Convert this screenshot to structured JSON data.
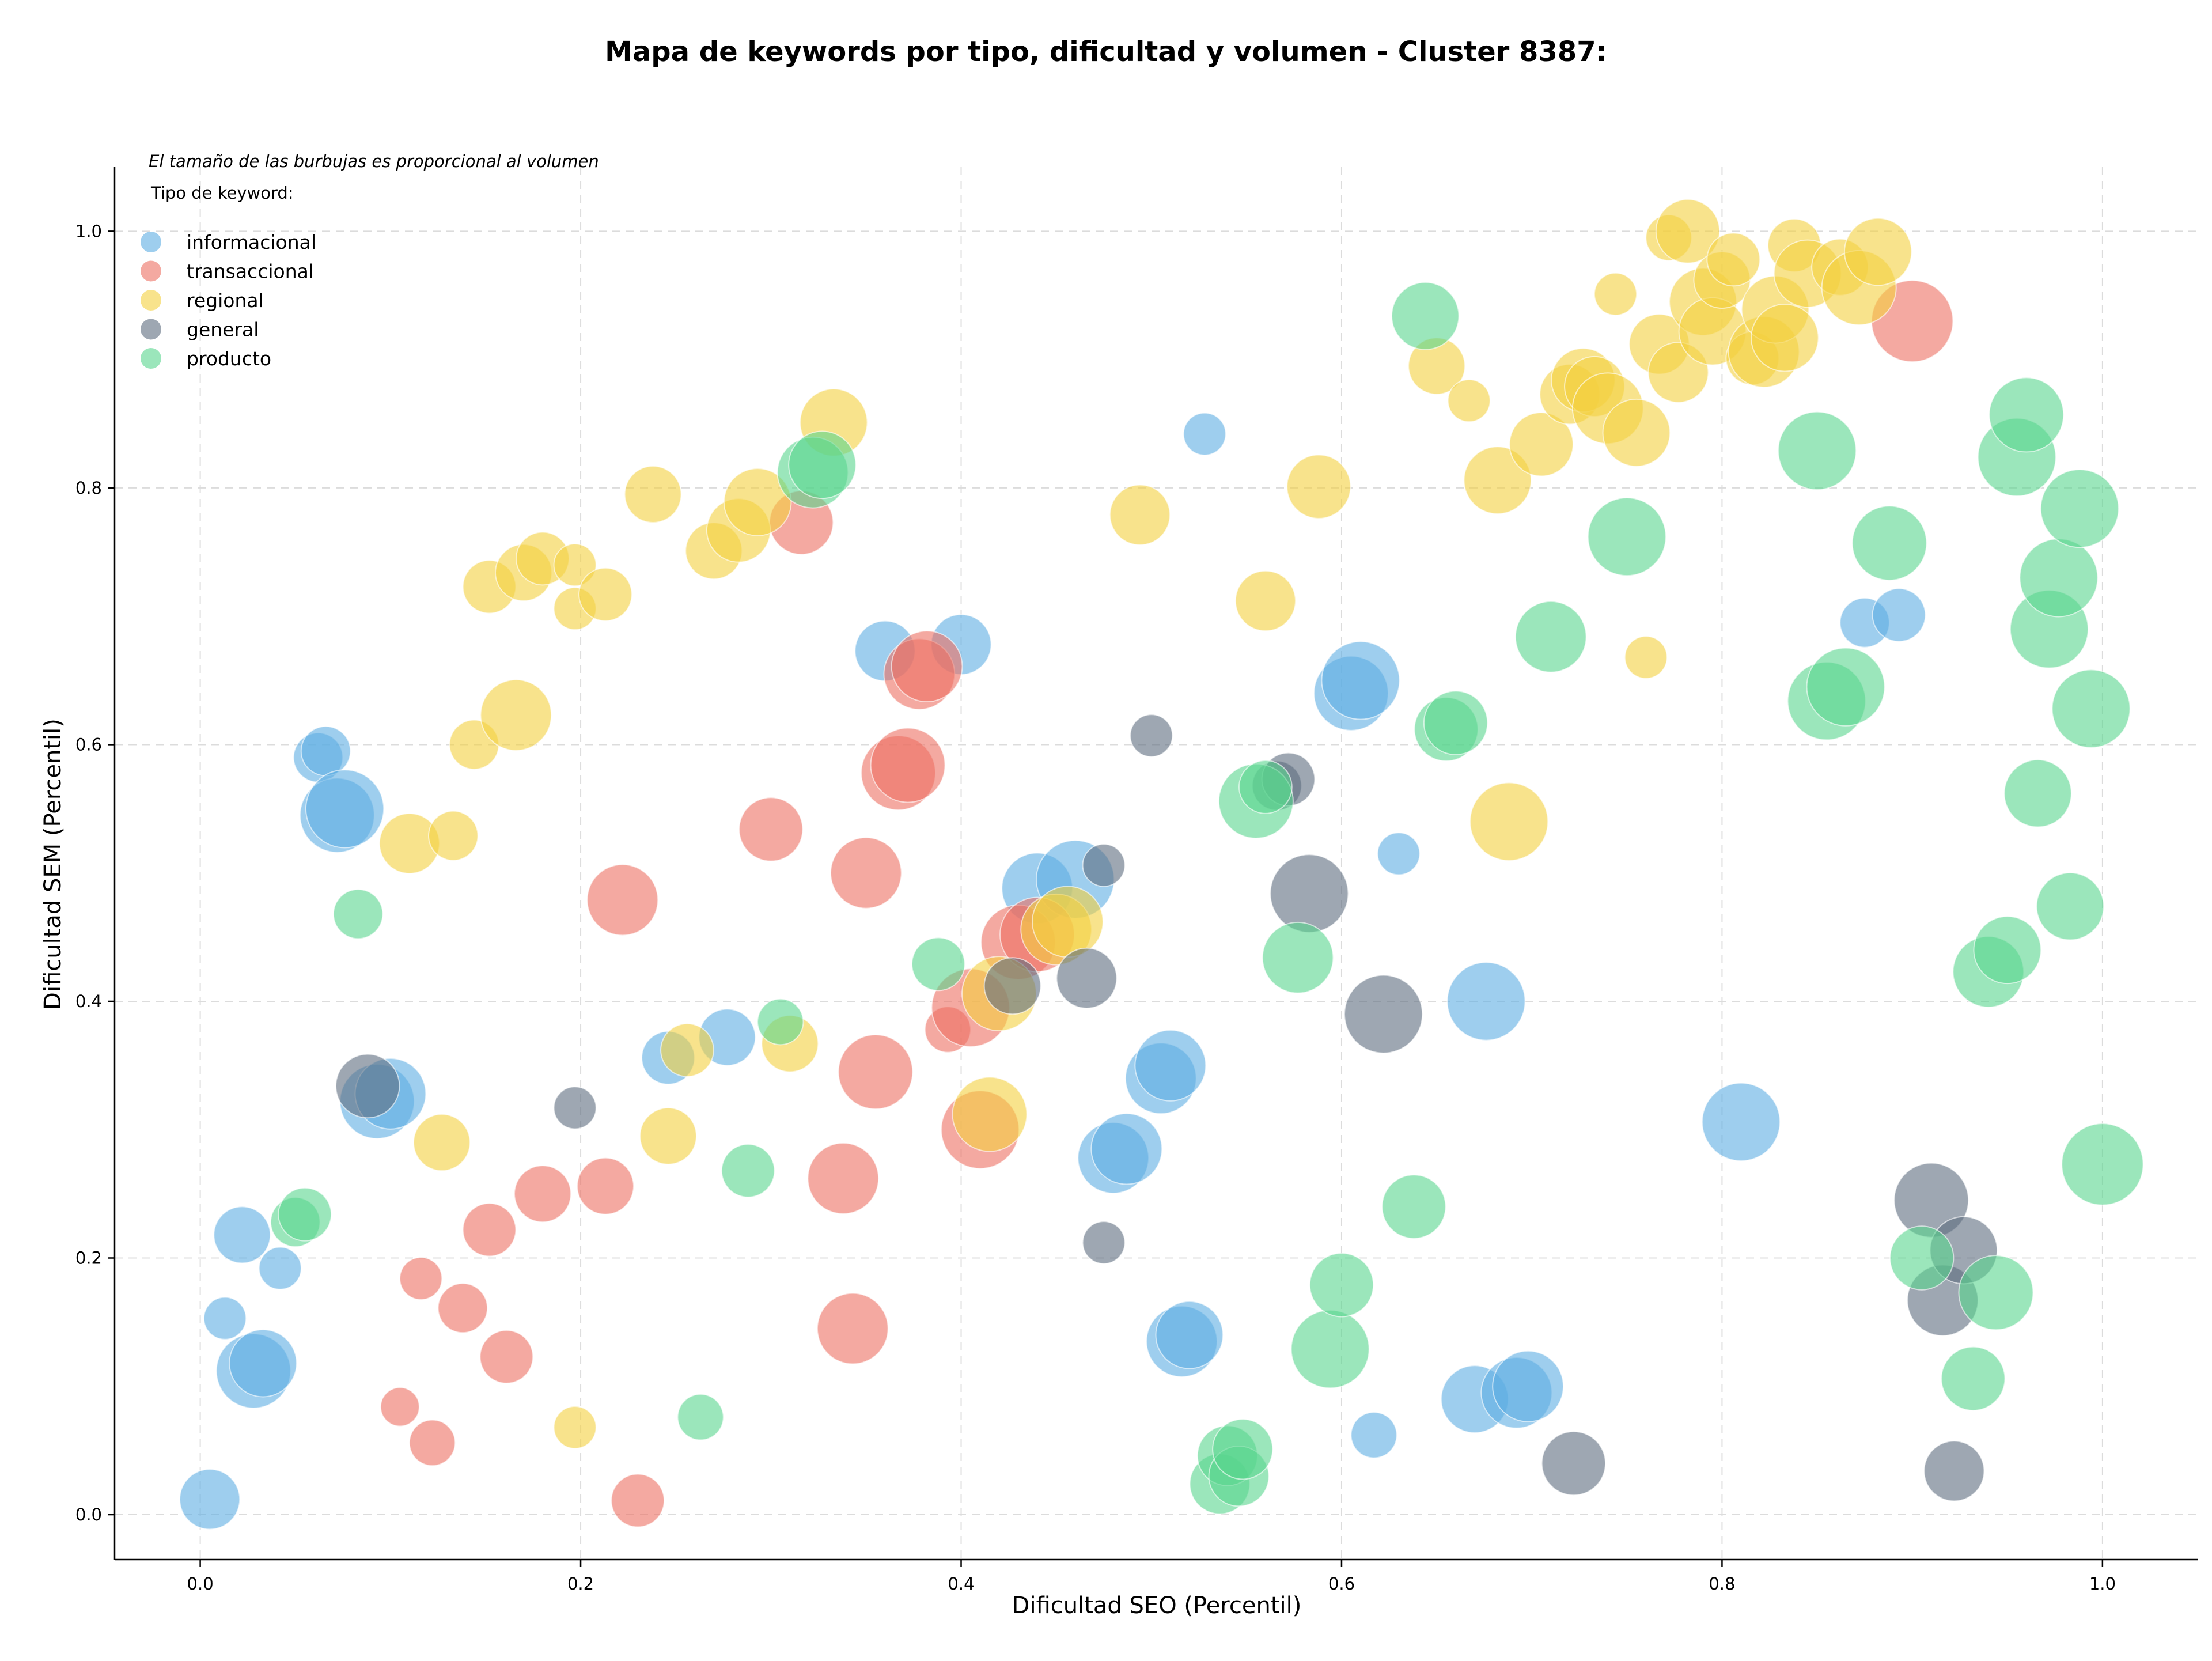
{
  "chart_data": {
    "type": "scatter",
    "title": "Mapa de keywords por tipo, dificultad y volumen - Cluster 8387:",
    "xlabel": "Dificultad SEO (Percentil)",
    "ylabel": "Dificultad SEM (Percentil)",
    "xlim": [
      -0.045,
      1.05
    ],
    "ylim": [
      -0.035,
      1.05
    ],
    "xticks": [
      "0.0",
      "0.2",
      "0.4",
      "0.6",
      "0.8",
      "1.0"
    ],
    "yticks": [
      "0.0",
      "0.2",
      "0.4",
      "0.6",
      "0.8",
      "1.0"
    ],
    "xtick_values": [
      0,
      0.2,
      0.4,
      0.6,
      0.8,
      1.0
    ],
    "ytick_values": [
      0,
      0.2,
      0.4,
      0.6,
      0.8,
      1.0
    ],
    "grid": true,
    "note": "El tamaño de las burbujas es proporcional al volumen",
    "legend_title": "Tipo de keyword:",
    "legend_position": "top-left",
    "series": [
      {
        "name": "informacional",
        "color": "#5DADE2",
        "points": [
          [
            0.005,
            0.012,
            0.55
          ],
          [
            0.022,
            0.218,
            0.5
          ],
          [
            0.028,
            0.112,
            0.75
          ],
          [
            0.033,
            0.118,
            0.65
          ],
          [
            0.013,
            0.153,
            0.3
          ],
          [
            0.042,
            0.192,
            0.3
          ],
          [
            0.062,
            0.59,
            0.4
          ],
          [
            0.066,
            0.595,
            0.4
          ],
          [
            0.072,
            0.545,
            0.75
          ],
          [
            0.076,
            0.55,
            0.8
          ],
          [
            0.093,
            0.322,
            0.75
          ],
          [
            0.1,
            0.328,
            0.7
          ],
          [
            0.246,
            0.356,
            0.45
          ],
          [
            0.277,
            0.372,
            0.5
          ],
          [
            0.36,
            0.673,
            0.55
          ],
          [
            0.4,
            0.678,
            0.55
          ],
          [
            0.44,
            0.488,
            0.7
          ],
          [
            0.46,
            0.495,
            0.8
          ],
          [
            0.48,
            0.278,
            0.7
          ],
          [
            0.487,
            0.285,
            0.7
          ],
          [
            0.505,
            0.34,
            0.7
          ],
          [
            0.51,
            0.35,
            0.7
          ],
          [
            0.516,
            0.135,
            0.7
          ],
          [
            0.52,
            0.14,
            0.65
          ],
          [
            0.528,
            0.842,
            0.3
          ],
          [
            0.605,
            0.64,
            0.75
          ],
          [
            0.61,
            0.65,
            0.8
          ],
          [
            0.63,
            0.515,
            0.3
          ],
          [
            0.617,
            0.062,
            0.35
          ],
          [
            0.67,
            0.09,
            0.65
          ],
          [
            0.676,
            0.4,
            0.8
          ],
          [
            0.692,
            0.095,
            0.7
          ],
          [
            0.698,
            0.1,
            0.7
          ],
          [
            0.81,
            0.306,
            0.8
          ],
          [
            0.875,
            0.695,
            0.4
          ],
          [
            0.893,
            0.701,
            0.45
          ]
        ]
      },
      {
        "name": "transaccional",
        "color": "#EC7063",
        "points": [
          [
            0.105,
            0.084,
            0.25
          ],
          [
            0.116,
            0.184,
            0.3
          ],
          [
            0.122,
            0.056,
            0.35
          ],
          [
            0.138,
            0.161,
            0.4
          ],
          [
            0.152,
            0.222,
            0.45
          ],
          [
            0.161,
            0.123,
            0.45
          ],
          [
            0.18,
            0.25,
            0.5
          ],
          [
            0.213,
            0.256,
            0.5
          ],
          [
            0.222,
            0.479,
            0.7
          ],
          [
            0.23,
            0.011,
            0.45
          ],
          [
            0.3,
            0.534,
            0.6
          ],
          [
            0.316,
            0.773,
            0.6
          ],
          [
            0.338,
            0.262,
            0.7
          ],
          [
            0.343,
            0.145,
            0.7
          ],
          [
            0.35,
            0.5,
            0.7
          ],
          [
            0.355,
            0.345,
            0.75
          ],
          [
            0.367,
            0.578,
            0.75
          ],
          [
            0.372,
            0.584,
            0.75
          ],
          [
            0.378,
            0.655,
            0.7
          ],
          [
            0.382,
            0.661,
            0.7
          ],
          [
            0.393,
            0.378,
            0.35
          ],
          [
            0.405,
            0.395,
            0.8
          ],
          [
            0.41,
            0.3,
            0.8
          ],
          [
            0.43,
            0.446,
            0.75
          ],
          [
            0.44,
            0.452,
            0.75
          ],
          [
            0.9,
            0.93,
            0.85
          ]
        ]
      },
      {
        "name": "regional",
        "color": "#F4D03F",
        "points": [
          [
            0.11,
            0.523,
            0.55
          ],
          [
            0.127,
            0.29,
            0.5
          ],
          [
            0.133,
            0.529,
            0.4
          ],
          [
            0.144,
            0.6,
            0.4
          ],
          [
            0.152,
            0.723,
            0.45
          ],
          [
            0.166,
            0.623,
            0.7
          ],
          [
            0.17,
            0.734,
            0.5
          ],
          [
            0.18,
            0.745,
            0.45
          ],
          [
            0.197,
            0.74,
            0.3
          ],
          [
            0.197,
            0.706,
            0.3
          ],
          [
            0.197,
            0.068,
            0.3
          ],
          [
            0.213,
            0.717,
            0.45
          ],
          [
            0.238,
            0.795,
            0.5
          ],
          [
            0.246,
            0.295,
            0.5
          ],
          [
            0.256,
            0.362,
            0.45
          ],
          [
            0.27,
            0.751,
            0.5
          ],
          [
            0.283,
            0.767,
            0.6
          ],
          [
            0.293,
            0.789,
            0.65
          ],
          [
            0.31,
            0.367,
            0.5
          ],
          [
            0.333,
            0.851,
            0.65
          ],
          [
            0.415,
            0.312,
            0.75
          ],
          [
            0.42,
            0.406,
            0.75
          ],
          [
            0.45,
            0.456,
            0.7
          ],
          [
            0.456,
            0.462,
            0.7
          ],
          [
            0.494,
            0.779,
            0.55
          ],
          [
            0.56,
            0.712,
            0.55
          ],
          [
            0.588,
            0.801,
            0.6
          ],
          [
            0.65,
            0.895,
            0.5
          ],
          [
            0.667,
            0.868,
            0.3
          ],
          [
            0.682,
            0.806,
            0.65
          ],
          [
            0.688,
            0.54,
            0.8
          ],
          [
            0.705,
            0.834,
            0.6
          ],
          [
            0.72,
            0.873,
            0.55
          ],
          [
            0.727,
            0.884,
            0.6
          ],
          [
            0.733,
            0.879,
            0.55
          ],
          [
            0.74,
            0.862,
            0.7
          ],
          [
            0.744,
            0.951,
            0.3
          ],
          [
            0.755,
            0.843,
            0.65
          ],
          [
            0.76,
            0.668,
            0.3
          ],
          [
            0.767,
            0.912,
            0.55
          ],
          [
            0.772,
            0.995,
            0.35
          ],
          [
            0.777,
            0.89,
            0.55
          ],
          [
            0.782,
            1.0,
            0.6
          ],
          [
            0.79,
            0.945,
            0.65
          ],
          [
            0.795,
            0.922,
            0.65
          ],
          [
            0.8,
            0.962,
            0.5
          ],
          [
            0.806,
            0.978,
            0.45
          ],
          [
            0.816,
            0.901,
            0.45
          ],
          [
            0.822,
            0.906,
            0.7
          ],
          [
            0.828,
            0.939,
            0.65
          ],
          [
            0.833,
            0.917,
            0.65
          ],
          [
            0.838,
            0.989,
            0.45
          ],
          [
            0.845,
            0.967,
            0.65
          ],
          [
            0.862,
            0.972,
            0.5
          ],
          [
            0.872,
            0.956,
            0.75
          ],
          [
            0.882,
            0.984,
            0.65
          ]
        ]
      },
      {
        "name": "general",
        "color": "#5D6D7E",
        "points": [
          [
            0.088,
            0.334,
            0.6
          ],
          [
            0.197,
            0.317,
            0.3
          ],
          [
            0.427,
            0.412,
            0.5
          ],
          [
            0.466,
            0.418,
            0.55
          ],
          [
            0.475,
            0.212,
            0.3
          ],
          [
            0.475,
            0.506,
            0.3
          ],
          [
            0.5,
            0.607,
            0.3
          ],
          [
            0.566,
            0.568,
            0.4
          ],
          [
            0.572,
            0.573,
            0.45
          ],
          [
            0.583,
            0.484,
            0.8
          ],
          [
            0.622,
            0.39,
            0.8
          ],
          [
            0.722,
            0.04,
            0.6
          ],
          [
            0.91,
            0.245,
            0.75
          ],
          [
            0.916,
            0.167,
            0.7
          ],
          [
            0.922,
            0.034,
            0.55
          ],
          [
            0.927,
            0.206,
            0.65
          ]
        ]
      },
      {
        "name": "producto",
        "color": "#58D68D",
        "points": [
          [
            0.05,
            0.228,
            0.4
          ],
          [
            0.055,
            0.234,
            0.45
          ],
          [
            0.083,
            0.468,
            0.4
          ],
          [
            0.263,
            0.076,
            0.35
          ],
          [
            0.288,
            0.268,
            0.45
          ],
          [
            0.305,
            0.384,
            0.35
          ],
          [
            0.322,
            0.812,
            0.7
          ],
          [
            0.327,
            0.818,
            0.65
          ],
          [
            0.388,
            0.429,
            0.45
          ],
          [
            0.536,
            0.024,
            0.55
          ],
          [
            0.54,
            0.046,
            0.55
          ],
          [
            0.546,
            0.03,
            0.55
          ],
          [
            0.548,
            0.051,
            0.55
          ],
          [
            0.555,
            0.556,
            0.75
          ],
          [
            0.56,
            0.567,
            0.45
          ],
          [
            0.577,
            0.434,
            0.7
          ],
          [
            0.594,
            0.129,
            0.8
          ],
          [
            0.6,
            0.179,
            0.6
          ],
          [
            0.638,
            0.24,
            0.6
          ],
          [
            0.644,
            0.934,
            0.65
          ],
          [
            0.655,
            0.612,
            0.6
          ],
          [
            0.66,
            0.617,
            0.6
          ],
          [
            0.71,
            0.684,
            0.7
          ],
          [
            0.75,
            0.762,
            0.8
          ],
          [
            0.85,
            0.829,
            0.8
          ],
          [
            0.855,
            0.634,
            0.8
          ],
          [
            0.865,
            0.645,
            0.8
          ],
          [
            0.888,
            0.757,
            0.75
          ],
          [
            0.905,
            0.2,
            0.6
          ],
          [
            0.932,
            0.106,
            0.6
          ],
          [
            0.94,
            0.423,
            0.7
          ],
          [
            0.944,
            0.173,
            0.75
          ],
          [
            0.95,
            0.44,
            0.65
          ],
          [
            0.955,
            0.824,
            0.8
          ],
          [
            0.96,
            0.857,
            0.75
          ],
          [
            0.966,
            0.562,
            0.65
          ],
          [
            0.972,
            0.69,
            0.8
          ],
          [
            0.977,
            0.73,
            0.8
          ],
          [
            0.983,
            0.474,
            0.65
          ],
          [
            0.988,
            0.784,
            0.8
          ],
          [
            0.994,
            0.628,
            0.8
          ],
          [
            1.0,
            0.273,
            0.85
          ]
        ]
      }
    ]
  }
}
